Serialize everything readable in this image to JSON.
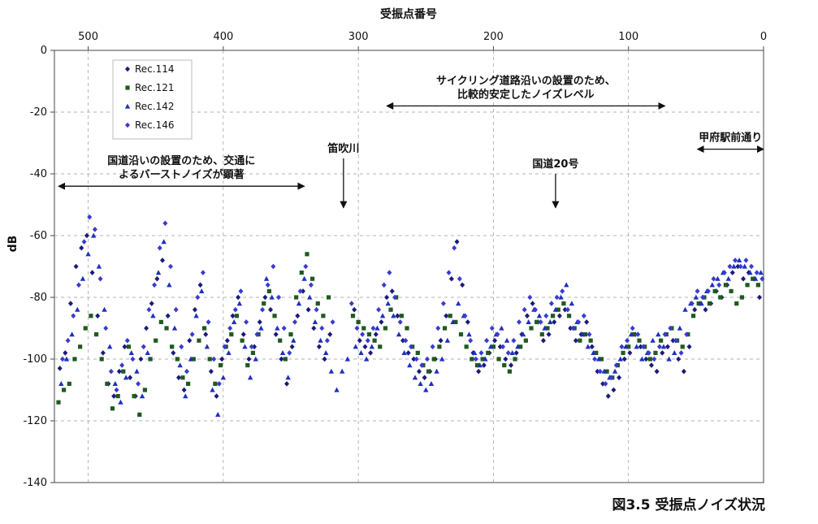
{
  "chart_data": {
    "type": "scatter",
    "caption": "図3.5 受振点ノイズ状況",
    "xlabel": "受振点番号",
    "ylabel": "dB",
    "xlim": [
      525,
      0
    ],
    "ylim": [
      -140,
      0
    ],
    "x_ticks": [
      "500",
      "400",
      "300",
      "200",
      "100",
      "0"
    ],
    "y_ticks": [
      "0",
      "-20",
      "-40",
      "-60",
      "-80",
      "-100",
      "-120",
      "-140"
    ],
    "grid": true,
    "legend_position": "top-left",
    "series": [
      {
        "name": "Rec.114",
        "color": "#1a1a7a",
        "marker": "diamond",
        "x": [
          521,
          517,
          513,
          509,
          505,
          501,
          497,
          493,
          489,
          485,
          481,
          477,
          473,
          469,
          465,
          461,
          457,
          453,
          449,
          445,
          441,
          437,
          433,
          429,
          425,
          421,
          417,
          413,
          409,
          405,
          401,
          397,
          393,
          389,
          385,
          381,
          377,
          373,
          369,
          365,
          361,
          357,
          353,
          349,
          345,
          341,
          337,
          333,
          329,
          325,
          321,
          303,
          299,
          295,
          291,
          287,
          283,
          279,
          275,
          271,
          267,
          263,
          259,
          255,
          251,
          247,
          243,
          239,
          235,
          231,
          227,
          223,
          219,
          215,
          211,
          207,
          203,
          199,
          195,
          191,
          187,
          183,
          179,
          175,
          171,
          167,
          163,
          159,
          155,
          151,
          147,
          143,
          139,
          135,
          131,
          127,
          123,
          119,
          115,
          111,
          107,
          103,
          99,
          95,
          91,
          87,
          83,
          79,
          75,
          71,
          67,
          63,
          59,
          55,
          51,
          47,
          43,
          39,
          35,
          31,
          27,
          23,
          19,
          15,
          11,
          7,
          3
        ],
        "y": [
          -103,
          -98,
          -82,
          -70,
          -64,
          -60,
          -72,
          -86,
          -98,
          -108,
          -112,
          -104,
          -96,
          -106,
          -112,
          -100,
          -90,
          -82,
          -74,
          -68,
          -86,
          -98,
          -106,
          -110,
          -94,
          -84,
          -76,
          -92,
          -104,
          -112,
          -100,
          -94,
          -86,
          -80,
          -92,
          -100,
          -96,
          -88,
          -80,
          -84,
          -92,
          -100,
          -108,
          -96,
          -86,
          -78,
          -84,
          -90,
          -96,
          -100,
          -92,
          -84,
          -94,
          -96,
          -98,
          -92,
          -88,
          -80,
          -78,
          -86,
          -94,
          -98,
          -100,
          -104,
          -106,
          -104,
          -100,
          -94,
          -86,
          -74,
          -62,
          -76,
          -88,
          -98,
          -104,
          -102,
          -98,
          -94,
          -96,
          -100,
          -102,
          -98,
          -92,
          -86,
          -82,
          -88,
          -94,
          -92,
          -88,
          -86,
          -84,
          -90,
          -94,
          -92,
          -88,
          -96,
          -104,
          -108,
          -112,
          -110,
          -106,
          -100,
          -98,
          -92,
          -96,
          -100,
          -102,
          -104,
          -98,
          -96,
          -94,
          -100,
          -104,
          -96,
          -84,
          -82,
          -84,
          -82,
          -78,
          -80,
          -76,
          -72,
          -70,
          -74,
          -72,
          -74,
          -80
        ]
      },
      {
        "name": "Rec.121",
        "color": "#1f5a1f",
        "marker": "square",
        "x": [
          522,
          518,
          514,
          510,
          506,
          502,
          498,
          494,
          490,
          486,
          482,
          478,
          474,
          470,
          466,
          462,
          458,
          454,
          450,
          446,
          442,
          438,
          434,
          430,
          426,
          422,
          418,
          414,
          410,
          406,
          402,
          398,
          394,
          390,
          386,
          382,
          378,
          374,
          370,
          366,
          362,
          358,
          354,
          350,
          346,
          342,
          338,
          334,
          330,
          326,
          322,
          304,
          300,
          296,
          292,
          288,
          284,
          280,
          276,
          272,
          268,
          264,
          260,
          256,
          252,
          248,
          244,
          240,
          236,
          232,
          228,
          224,
          220,
          216,
          212,
          208,
          204,
          200,
          196,
          192,
          188,
          184,
          180,
          176,
          172,
          168,
          164,
          160,
          156,
          152,
          148,
          144,
          140,
          136,
          132,
          128,
          124,
          120,
          116,
          112,
          108,
          104,
          100,
          96,
          92,
          88,
          84,
          80,
          76,
          72,
          68,
          64,
          60,
          56,
          52,
          48,
          44,
          40,
          36,
          32,
          28,
          24,
          20,
          16,
          12,
          8,
          4
        ],
        "y": [
          -114,
          -110,
          -108,
          -100,
          -96,
          -90,
          -86,
          -92,
          -100,
          -108,
          -116,
          -112,
          -104,
          -96,
          -112,
          -118,
          -110,
          -100,
          -94,
          -88,
          -90,
          -96,
          -100,
          -106,
          -108,
          -100,
          -94,
          -90,
          -100,
          -108,
          -102,
          -96,
          -92,
          -86,
          -94,
          -102,
          -98,
          -92,
          -82,
          -78,
          -86,
          -94,
          -100,
          -92,
          -80,
          -72,
          -66,
          -74,
          -82,
          -86,
          -80,
          -86,
          -88,
          -90,
          -92,
          -94,
          -96,
          -90,
          -84,
          -80,
          -86,
          -90,
          -96,
          -98,
          -102,
          -104,
          -100,
          -96,
          -90,
          -86,
          -88,
          -92,
          -96,
          -100,
          -102,
          -100,
          -98,
          -96,
          -100,
          -102,
          -104,
          -100,
          -96,
          -94,
          -90,
          -88,
          -92,
          -90,
          -86,
          -84,
          -82,
          -86,
          -90,
          -94,
          -92,
          -94,
          -98,
          -100,
          -104,
          -106,
          -102,
          -98,
          -96,
          -92,
          -94,
          -96,
          -100,
          -98,
          -94,
          -92,
          -90,
          -94,
          -96,
          -92,
          -86,
          -82,
          -80,
          -82,
          -78,
          -80,
          -76,
          -78,
          -82,
          -80,
          -76,
          -74,
          -76
        ]
      },
      {
        "name": "Rec.142",
        "color": "#1e2fbf",
        "marker": "triangle",
        "x": [
          520,
          516,
          512,
          508,
          504,
          500,
          496,
          492,
          488,
          484,
          480,
          476,
          472,
          468,
          464,
          460,
          456,
          452,
          448,
          444,
          440,
          436,
          432,
          428,
          424,
          420,
          416,
          412,
          408,
          404,
          400,
          396,
          392,
          388,
          384,
          380,
          376,
          372,
          368,
          364,
          360,
          356,
          352,
          348,
          344,
          340,
          336,
          332,
          328,
          324,
          320,
          316,
          312,
          308,
          302,
          298,
          294,
          290,
          286,
          282,
          278,
          274,
          270,
          266,
          262,
          258,
          254,
          250,
          246,
          242,
          238,
          234,
          230,
          226,
          222,
          218,
          214,
          210,
          206,
          202,
          198,
          194,
          190,
          186,
          182,
          178,
          174,
          170,
          166,
          162,
          158,
          154,
          150,
          146,
          142,
          138,
          134,
          130,
          126,
          122,
          118,
          114,
          110,
          106,
          102,
          98,
          94,
          90,
          86,
          82,
          78,
          74,
          70,
          66,
          62,
          58,
          54,
          50,
          46,
          42,
          38,
          34,
          30,
          26,
          22,
          18,
          14,
          10,
          6,
          2
        ],
        "y": [
          -108,
          -100,
          -92,
          -84,
          -74,
          -66,
          -60,
          -70,
          -84,
          -96,
          -108,
          -114,
          -106,
          -98,
          -104,
          -112,
          -98,
          -86,
          -72,
          -62,
          -76,
          -90,
          -102,
          -112,
          -100,
          -86,
          -78,
          -96,
          -110,
          -118,
          -106,
          -98,
          -88,
          -82,
          -96,
          -106,
          -100,
          -90,
          -74,
          -80,
          -90,
          -98,
          -106,
          -94,
          -82,
          -74,
          -80,
          -88,
          -94,
          -98,
          -104,
          -110,
          -104,
          -100,
          -96,
          -98,
          -100,
          -96,
          -90,
          -86,
          -82,
          -86,
          -92,
          -98,
          -102,
          -106,
          -108,
          -110,
          -108,
          -104,
          -100,
          -94,
          -88,
          -82,
          -86,
          -92,
          -98,
          -102,
          -100,
          -96,
          -92,
          -90,
          -94,
          -98,
          -96,
          -92,
          -88,
          -84,
          -86,
          -90,
          -88,
          -84,
          -80,
          -76,
          -82,
          -88,
          -92,
          -96,
          -98,
          -100,
          -104,
          -106,
          -104,
          -100,
          -96,
          -92,
          -96,
          -100,
          -98,
          -94,
          -92,
          -96,
          -100,
          -98,
          -90,
          -84,
          -82,
          -80,
          -82,
          -78,
          -76,
          -74,
          -72,
          -74,
          -70,
          -68,
          -70,
          -72,
          -74,
          -72
        ]
      },
      {
        "name": "Rec.146",
        "color": "#3a3ad0",
        "marker": "diamond",
        "x": [
          519,
          515,
          511,
          507,
          503,
          499,
          495,
          491,
          487,
          483,
          479,
          475,
          471,
          467,
          463,
          459,
          455,
          451,
          447,
          443,
          439,
          435,
          431,
          427,
          423,
          419,
          415,
          411,
          407,
          403,
          399,
          395,
          391,
          387,
          383,
          379,
          375,
          371,
          367,
          363,
          359,
          355,
          351,
          347,
          343,
          339,
          335,
          331,
          327,
          323,
          319,
          305,
          301,
          297,
          293,
          289,
          285,
          281,
          277,
          273,
          269,
          265,
          261,
          257,
          253,
          249,
          245,
          241,
          237,
          233,
          229,
          225,
          221,
          217,
          213,
          209,
          205,
          201,
          197,
          193,
          189,
          185,
          181,
          177,
          173,
          169,
          165,
          161,
          157,
          153,
          149,
          145,
          141,
          137,
          133,
          129,
          125,
          121,
          117,
          113,
          109,
          105,
          101,
          97,
          93,
          89,
          85,
          81,
          77,
          73,
          69,
          65,
          61,
          57,
          53,
          49,
          45,
          41,
          37,
          33,
          29,
          25,
          21,
          17,
          13,
          9,
          5,
          1
        ],
        "y": [
          -100,
          -94,
          -86,
          -76,
          -62,
          -54,
          -58,
          -74,
          -90,
          -104,
          -110,
          -102,
          -94,
          -100,
          -108,
          -96,
          -84,
          -76,
          -64,
          -56,
          -70,
          -84,
          -96,
          -104,
          -92,
          -80,
          -72,
          -88,
          -100,
          -108,
          -96,
          -90,
          -84,
          -78,
          -88,
          -96,
          -92,
          -84,
          -76,
          -70,
          -80,
          -90,
          -98,
          -88,
          -78,
          -70,
          -76,
          -84,
          -90,
          -94,
          -88,
          -82,
          -90,
          -92,
          -94,
          -90,
          -84,
          -76,
          -72,
          -80,
          -88,
          -94,
          -96,
          -100,
          -102,
          -100,
          -96,
          -90,
          -82,
          -72,
          -64,
          -74,
          -86,
          -94,
          -100,
          -98,
          -94,
          -90,
          -92,
          -96,
          -98,
          -94,
          -88,
          -84,
          -80,
          -84,
          -88,
          -86,
          -82,
          -80,
          -78,
          -84,
          -90,
          -88,
          -86,
          -92,
          -100,
          -104,
          -108,
          -106,
          -102,
          -96,
          -94,
          -90,
          -92,
          -96,
          -98,
          -100,
          -96,
          -92,
          -90,
          -94,
          -98,
          -92,
          -82,
          -78,
          -80,
          -78,
          -74,
          -76,
          -72,
          -70,
          -68,
          -70,
          -68,
          -70,
          -72,
          -74
        ]
      }
    ],
    "legend": [
      "Rec.114",
      "Rec.121",
      "Rec.142",
      "Rec.146"
    ],
    "annotations": [
      {
        "lines": [
          "国道沿いの設置のため、交通に",
          "よるバーストノイズが顕著"
        ],
        "type": "range",
        "x_from": 522,
        "x_to": 340,
        "y": -44
      },
      {
        "lines": [
          "笛吹川"
        ],
        "type": "arrow-down",
        "x": 311,
        "y_from": -35,
        "y_to": -51
      },
      {
        "lines": [
          "サイクリング道路沿いの設置のため、",
          "比較的安定したノイズレベル"
        ],
        "type": "range",
        "x_from": 279,
        "x_to": 73,
        "y": -18
      },
      {
        "lines": [
          "国道20号"
        ],
        "type": "arrow-down",
        "x": 154,
        "y_from": -40,
        "y_to": -51
      },
      {
        "lines": [
          "甲府駅前通り"
        ],
        "type": "range",
        "x_from": 49,
        "x_to": 0,
        "y": -32
      }
    ]
  }
}
